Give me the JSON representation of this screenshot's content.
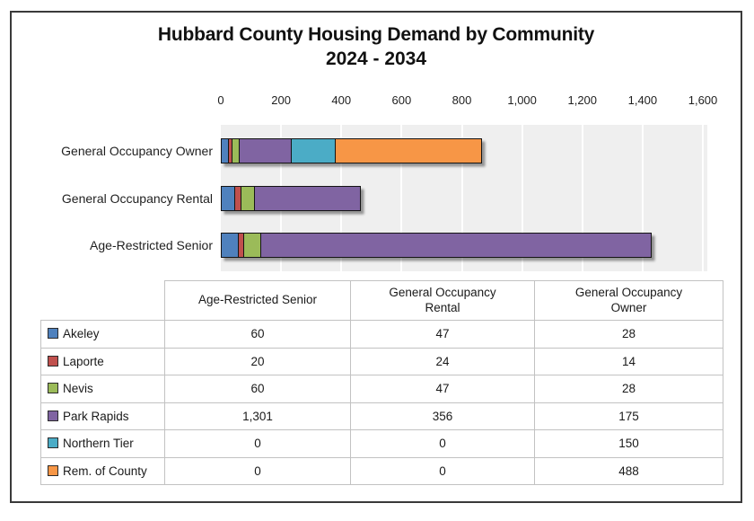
{
  "chart_data": {
    "type": "bar",
    "stacked": true,
    "orientation": "horizontal",
    "title": "Hubbard County Housing Demand by Community",
    "subtitle": "2024 - 2034",
    "categories": [
      "General Occupancy Owner",
      "General Occupancy Rental",
      "Age-Restricted Senior"
    ],
    "series": [
      {
        "name": "Akeley",
        "color": "#4F81BD",
        "values": [
          28,
          47,
          60
        ]
      },
      {
        "name": "Laporte",
        "color": "#C0504D",
        "values": [
          14,
          24,
          20
        ]
      },
      {
        "name": "Nevis",
        "color": "#9BBB59",
        "values": [
          28,
          47,
          60
        ]
      },
      {
        "name": "Park Rapids",
        "color": "#8064A2",
        "values": [
          175,
          356,
          1301
        ]
      },
      {
        "name": "Northern Tier",
        "color": "#4BACC6",
        "values": [
          150,
          0,
          0
        ]
      },
      {
        "name": "Rem. of County",
        "color": "#F79646",
        "values": [
          488,
          0,
          0
        ]
      }
    ],
    "xlim": [
      0,
      1600
    ],
    "x_ticks": [
      "0",
      "200",
      "400",
      "600",
      "800",
      "1,000",
      "1,200",
      "1,400",
      "1,600"
    ],
    "grid": true,
    "plot_bg": "#EFEFEF",
    "legend_position": "table-below"
  },
  "table": {
    "headers": [
      "Age-Restricted Senior",
      "General Occupancy Rental",
      "General Occupancy Owner"
    ],
    "rows": [
      {
        "name": "Akeley",
        "color": "#4F81BD",
        "values": [
          "60",
          "47",
          "28"
        ]
      },
      {
        "name": "Laporte",
        "color": "#C0504D",
        "values": [
          "20",
          "24",
          "14"
        ]
      },
      {
        "name": "Nevis",
        "color": "#9BBB59",
        "values": [
          "60",
          "47",
          "28"
        ]
      },
      {
        "name": "Park Rapids",
        "color": "#8064A2",
        "values": [
          "1,301",
          "356",
          "175"
        ]
      },
      {
        "name": "Northern Tier",
        "color": "#4BACC6",
        "values": [
          "0",
          "0",
          "150"
        ]
      },
      {
        "name": "Rem. of County",
        "color": "#F79646",
        "values": [
          "0",
          "0",
          "488"
        ]
      }
    ]
  }
}
